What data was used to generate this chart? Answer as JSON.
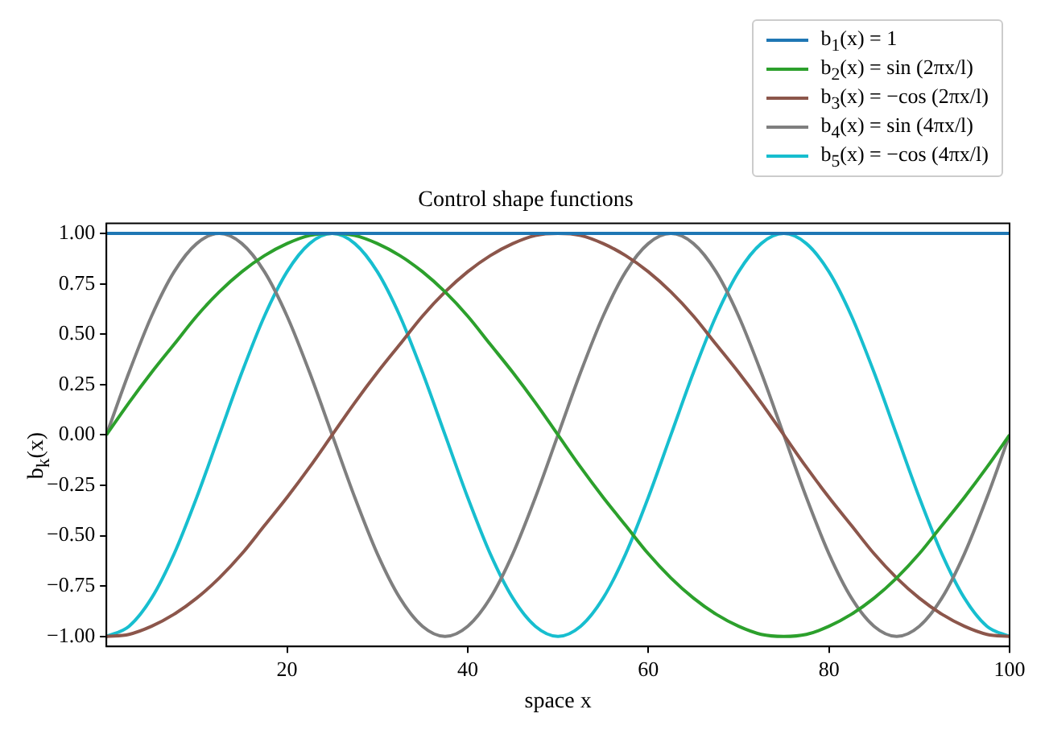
{
  "chart_data": {
    "type": "line",
    "title": "Control shape functions",
    "xlabel": "space x",
    "ylabel": "b$_{k}$(x)",
    "x": [
      0,
      2.5,
      5,
      7.5,
      10,
      12.5,
      15,
      17.5,
      20,
      22.5,
      25,
      27.5,
      30,
      32.5,
      35,
      37.5,
      40,
      42.5,
      45,
      47.5,
      50,
      52.5,
      55,
      57.5,
      60,
      62.5,
      65,
      67.5,
      70,
      72.5,
      75,
      77.5,
      80,
      82.5,
      85,
      87.5,
      90,
      92.5,
      95,
      97.5,
      100
    ],
    "series": [
      {
        "name": "b$_{1}$(x) = 1",
        "color": "#1f77b4",
        "values": [
          1,
          1,
          1,
          1,
          1,
          1,
          1,
          1,
          1,
          1,
          1,
          1,
          1,
          1,
          1,
          1,
          1,
          1,
          1,
          1,
          1,
          1,
          1,
          1,
          1,
          1,
          1,
          1,
          1,
          1,
          1,
          1,
          1,
          1,
          1,
          1,
          1,
          1,
          1,
          1,
          1
        ]
      },
      {
        "name": "b$_{2}$(x) = sin (2πx/l)",
        "color": "#2ca02c",
        "values": [
          0,
          0.16,
          0.31,
          0.45,
          0.59,
          0.71,
          0.81,
          0.89,
          0.95,
          0.99,
          1,
          0.99,
          0.95,
          0.89,
          0.81,
          0.71,
          0.59,
          0.45,
          0.31,
          0.16,
          0,
          -0.16,
          -0.31,
          -0.45,
          -0.59,
          -0.71,
          -0.81,
          -0.89,
          -0.95,
          -0.99,
          -1,
          -0.99,
          -0.95,
          -0.89,
          -0.81,
          -0.71,
          -0.59,
          -0.45,
          -0.31,
          -0.16,
          0
        ]
      },
      {
        "name": "b$_{3}$(x) = −cos (2πx/l)",
        "color": "#8c564b",
        "values": [
          -1,
          -0.99,
          -0.95,
          -0.89,
          -0.81,
          -0.71,
          -0.59,
          -0.45,
          -0.31,
          -0.16,
          0,
          0.16,
          0.31,
          0.45,
          0.59,
          0.71,
          0.81,
          0.89,
          0.95,
          0.99,
          1,
          0.99,
          0.95,
          0.89,
          0.81,
          0.71,
          0.59,
          0.45,
          0.31,
          0.16,
          0,
          -0.16,
          -0.31,
          -0.45,
          -0.59,
          -0.71,
          -0.81,
          -0.89,
          -0.95,
          -0.99,
          -1
        ]
      },
      {
        "name": "b$_{4}$(x) = sin (4πx/l)",
        "color": "#7f7f7f",
        "values": [
          0,
          0.31,
          0.59,
          0.81,
          0.95,
          1,
          0.95,
          0.81,
          0.59,
          0.31,
          0,
          -0.31,
          -0.59,
          -0.81,
          -0.95,
          -1,
          -0.95,
          -0.81,
          -0.59,
          -0.31,
          0,
          0.31,
          0.59,
          0.81,
          0.95,
          1,
          0.95,
          0.81,
          0.59,
          0.31,
          0,
          -0.31,
          -0.59,
          -0.81,
          -0.95,
          -1,
          -0.95,
          -0.81,
          -0.59,
          -0.31,
          0
        ]
      },
      {
        "name": "b$_{5}$(x) = −cos (4πx/l)",
        "color": "#17becf",
        "values": [
          -1,
          -0.95,
          -0.81,
          -0.59,
          -0.31,
          0,
          0.31,
          0.59,
          0.81,
          0.95,
          1,
          0.95,
          0.81,
          0.59,
          0.31,
          0,
          -0.31,
          -0.59,
          -0.81,
          -0.95,
          -1,
          -0.95,
          -0.81,
          -0.59,
          -0.31,
          0,
          0.31,
          0.59,
          0.81,
          0.95,
          1,
          0.95,
          0.81,
          0.59,
          0.31,
          0,
          -0.31,
          -0.59,
          -0.81,
          -0.95,
          -1
        ]
      }
    ],
    "xlim": [
      0,
      100
    ],
    "xticks": [
      20,
      40,
      60,
      80,
      100
    ],
    "ylim": [
      -1.05,
      1.05
    ],
    "yticks": [
      {
        "value": -1,
        "label": "−1.00"
      },
      {
        "value": -0.75,
        "label": "−0.75"
      },
      {
        "value": -0.5,
        "label": "−0.50"
      },
      {
        "value": -0.25,
        "label": "−0.25"
      },
      {
        "value": 0,
        "label": "0.00"
      },
      {
        "value": 0.25,
        "label": "0.25"
      },
      {
        "value": 0.5,
        "label": "0.50"
      },
      {
        "value": 0.75,
        "label": "0.75"
      },
      {
        "value": 1,
        "label": "1.00"
      }
    ],
    "grid": false,
    "legend": "top right",
    "marker": "none",
    "line_style": "solid"
  }
}
